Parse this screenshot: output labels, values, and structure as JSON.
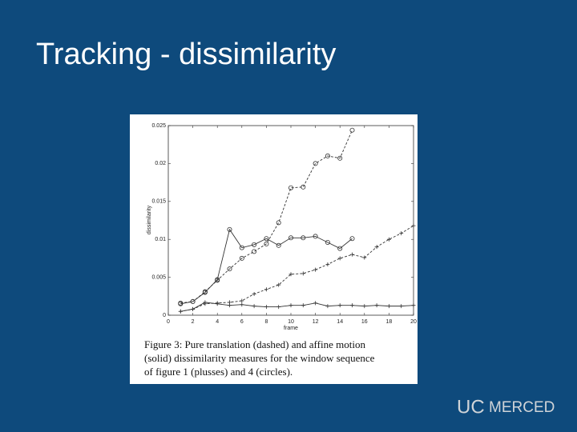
{
  "slide_title": "Tracking - dissimilarity",
  "caption": [
    "Figure 3: Pure translation (dashed) and affine motion",
    "(solid) dissimilarity measures for the window sequence",
    "of figure 1 (plusses) and 4 (circles)."
  ],
  "logo": [
    "UC",
    "MERCED"
  ],
  "chart_data": {
    "type": "line",
    "xlabel": "frame",
    "ylabel": "dissimilarity",
    "x": [
      1,
      2,
      3,
      4,
      5,
      6,
      7,
      8,
      9,
      10,
      11,
      12,
      13,
      14,
      15,
      16,
      17,
      18,
      19,
      20
    ],
    "xlim": [
      0,
      20
    ],
    "xticks": [
      0,
      2,
      4,
      6,
      8,
      10,
      12,
      14,
      16,
      18,
      20
    ],
    "ylim": [
      0,
      0.025
    ],
    "yticks": [
      0,
      0.005,
      0.01,
      0.015,
      0.02,
      0.025
    ],
    "grid": false,
    "series": [
      {
        "color": "#333333",
        "dashed": true,
        "marker": "circle",
        "values": [
          0.0016,
          0.0018,
          0.0031,
          0.0046,
          0.0061,
          0.0075,
          0.0084,
          0.0094,
          0.0122,
          0.0168,
          0.0169,
          0.02,
          0.021,
          0.0207,
          0.0244,
          null,
          null,
          null,
          null,
          null
        ]
      },
      {
        "color": "#333333",
        "dashed": false,
        "marker": "circle",
        "values": [
          0.0015,
          0.0018,
          0.003,
          0.0047,
          0.0113,
          0.0089,
          0.0093,
          0.0101,
          0.0092,
          0.0102,
          0.0102,
          0.0104,
          0.0096,
          0.0088,
          0.0101,
          null,
          null,
          null,
          null,
          null
        ]
      },
      {
        "color": "#333333",
        "dashed": true,
        "marker": "plus",
        "values": [
          0.0005,
          0.0008,
          0.0015,
          0.0016,
          0.0017,
          0.0019,
          0.0028,
          0.0034,
          0.004,
          0.0054,
          0.0055,
          0.006,
          0.0067,
          0.0075,
          0.008,
          0.0076,
          0.009,
          0.01,
          0.0108,
          0.0118
        ]
      },
      {
        "color": "#333333",
        "dashed": false,
        "marker": "plus",
        "values": [
          0.0005,
          0.0008,
          0.0017,
          0.0015,
          0.0013,
          0.0014,
          0.0012,
          0.0011,
          0.0011,
          0.0013,
          0.0013,
          0.0016,
          0.0012,
          0.0013,
          0.0013,
          0.0012,
          0.0013,
          0.0012,
          0.0012,
          0.0013
        ]
      }
    ]
  }
}
